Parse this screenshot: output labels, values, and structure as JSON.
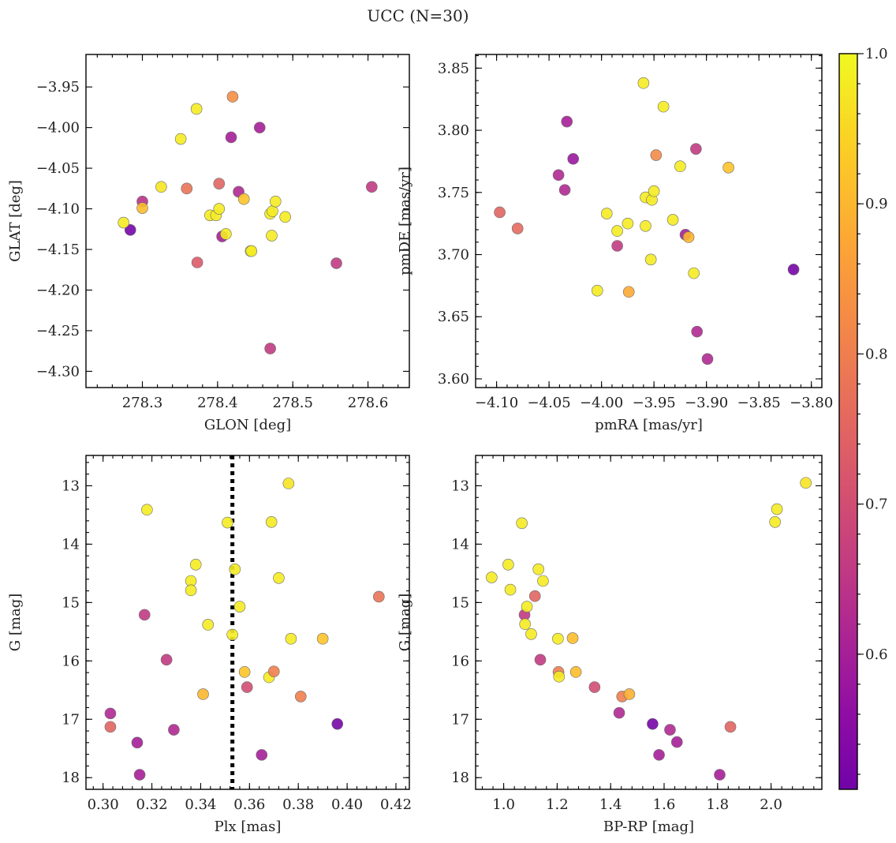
{
  "figure_title": "UCC (N=30)",
  "chart_data": [
    {
      "type": "scatter",
      "xlabel": "GLON [deg]",
      "ylabel": "GLAT [deg]",
      "xlim": [
        278.225,
        278.655
      ],
      "ylim": [
        -4.32,
        -3.91
      ],
      "yinvert": false,
      "xticks": [
        278.3,
        278.4,
        278.5,
        278.6
      ],
      "xtick_labels": [
        "278.3",
        "278.4",
        "278.5",
        "278.6"
      ],
      "yticks": [
        -3.95,
        -4.0,
        -4.05,
        -4.1,
        -4.15,
        -4.2,
        -4.25,
        -4.3
      ],
      "ytick_labels": [
        "−3.95",
        "−4.00",
        "−4.05",
        "−4.10",
        "−4.15",
        "−4.20",
        "−4.25",
        "−4.30"
      ],
      "points": [
        {
          "x": 278.284,
          "y": -4.126,
          "c": 0.52
        },
        {
          "x": 278.275,
          "y": -4.117,
          "c": 0.98
        },
        {
          "x": 278.3,
          "y": -4.091,
          "c": 0.64
        },
        {
          "x": 278.3,
          "y": -4.099,
          "c": 0.91
        },
        {
          "x": 278.325,
          "y": -4.073,
          "c": 0.97
        },
        {
          "x": 278.351,
          "y": -4.014,
          "c": 0.98
        },
        {
          "x": 278.359,
          "y": -4.075,
          "c": 0.78
        },
        {
          "x": 278.372,
          "y": -3.977,
          "c": 0.98
        },
        {
          "x": 278.373,
          "y": -4.166,
          "c": 0.73
        },
        {
          "x": 278.39,
          "y": -4.108,
          "c": 0.98
        },
        {
          "x": 278.398,
          "y": -4.108,
          "c": 0.98
        },
        {
          "x": 278.402,
          "y": -4.1,
          "c": 0.98
        },
        {
          "x": 278.402,
          "y": -4.069,
          "c": 0.75
        },
        {
          "x": 278.406,
          "y": -4.134,
          "c": 0.6
        },
        {
          "x": 278.411,
          "y": -4.131,
          "c": 0.98
        },
        {
          "x": 278.418,
          "y": -4.012,
          "c": 0.6
        },
        {
          "x": 278.42,
          "y": -3.962,
          "c": 0.83
        },
        {
          "x": 278.428,
          "y": -4.079,
          "c": 0.62
        },
        {
          "x": 278.435,
          "y": -4.088,
          "c": 0.92
        },
        {
          "x": 278.444,
          "y": -4.152,
          "c": 0.98
        },
        {
          "x": 278.445,
          "y": -4.152,
          "c": 0.98
        },
        {
          "x": 278.456,
          "y": -4.0,
          "c": 0.6
        },
        {
          "x": 278.47,
          "y": -4.106,
          "c": 0.98
        },
        {
          "x": 278.473,
          "y": -4.103,
          "c": 0.98
        },
        {
          "x": 278.472,
          "y": -4.133,
          "c": 0.98
        },
        {
          "x": 278.47,
          "y": -4.272,
          "c": 0.66
        },
        {
          "x": 278.477,
          "y": -4.091,
          "c": 0.98
        },
        {
          "x": 278.49,
          "y": -4.11,
          "c": 0.98
        },
        {
          "x": 278.558,
          "y": -4.167,
          "c": 0.66
        },
        {
          "x": 278.605,
          "y": -4.073,
          "c": 0.66
        }
      ]
    },
    {
      "type": "scatter",
      "xlabel": "pmRA [mas/yr]",
      "ylabel": "pmDE [mas/yr]",
      "xlim": [
        -4.12,
        -3.79
      ],
      "ylim": [
        3.593,
        3.861
      ],
      "yinvert": false,
      "xticks": [
        -4.1,
        -4.05,
        -4.0,
        -3.95,
        -3.9,
        -3.85,
        -3.8
      ],
      "xtick_labels": [
        "−4.10",
        "−4.05",
        "−4.00",
        "−3.95",
        "−3.90",
        "−3.85",
        "−3.80"
      ],
      "yticks": [
        3.6,
        3.65,
        3.7,
        3.75,
        3.8,
        3.85
      ],
      "ytick_labels": [
        "3.60",
        "3.65",
        "3.70",
        "3.75",
        "3.80",
        "3.85"
      ],
      "points": [
        {
          "x": -4.097,
          "y": 3.734,
          "c": 0.75
        },
        {
          "x": -4.08,
          "y": 3.721,
          "c": 0.76
        },
        {
          "x": -4.041,
          "y": 3.764,
          "c": 0.62
        },
        {
          "x": -4.033,
          "y": 3.807,
          "c": 0.6
        },
        {
          "x": -4.035,
          "y": 3.752,
          "c": 0.62
        },
        {
          "x": -4.027,
          "y": 3.777,
          "c": 0.58
        },
        {
          "x": -4.004,
          "y": 3.671,
          "c": 0.98
        },
        {
          "x": -3.995,
          "y": 3.733,
          "c": 0.98
        },
        {
          "x": -3.985,
          "y": 3.719,
          "c": 0.98
        },
        {
          "x": -3.985,
          "y": 3.707,
          "c": 0.66
        },
        {
          "x": -3.975,
          "y": 3.725,
          "c": 0.98
        },
        {
          "x": -3.974,
          "y": 3.67,
          "c": 0.88
        },
        {
          "x": -3.96,
          "y": 3.838,
          "c": 0.98
        },
        {
          "x": -3.958,
          "y": 3.723,
          "c": 0.98
        },
        {
          "x": -3.958,
          "y": 3.746,
          "c": 0.98
        },
        {
          "x": -3.953,
          "y": 3.696,
          "c": 0.98
        },
        {
          "x": -3.952,
          "y": 3.744,
          "c": 0.98
        },
        {
          "x": -3.95,
          "y": 3.751,
          "c": 0.98
        },
        {
          "x": -3.948,
          "y": 3.78,
          "c": 0.82
        },
        {
          "x": -3.941,
          "y": 3.819,
          "c": 0.98
        },
        {
          "x": -3.932,
          "y": 3.728,
          "c": 0.98
        },
        {
          "x": -3.925,
          "y": 3.771,
          "c": 0.98
        },
        {
          "x": -3.92,
          "y": 3.716,
          "c": 0.6
        },
        {
          "x": -3.917,
          "y": 3.714,
          "c": 0.9
        },
        {
          "x": -3.912,
          "y": 3.685,
          "c": 0.98
        },
        {
          "x": -3.91,
          "y": 3.785,
          "c": 0.66
        },
        {
          "x": -3.909,
          "y": 3.638,
          "c": 0.62
        },
        {
          "x": -3.899,
          "y": 3.616,
          "c": 0.62
        },
        {
          "x": -3.879,
          "y": 3.77,
          "c": 0.92
        },
        {
          "x": -3.817,
          "y": 3.688,
          "c": 0.52
        }
      ]
    },
    {
      "type": "scatter",
      "xlabel": "Plx [mas]",
      "ylabel": "G [mag]",
      "xlim": [
        0.293,
        0.4255
      ],
      "ylim": [
        18.2,
        12.48
      ],
      "yinvert": true,
      "xticks": [
        0.3,
        0.32,
        0.34,
        0.36,
        0.38,
        0.4,
        0.42
      ],
      "xtick_labels": [
        "0.30",
        "0.32",
        "0.34",
        "0.36",
        "0.38",
        "0.40",
        "0.42"
      ],
      "yticks": [
        13,
        14,
        15,
        16,
        17,
        18
      ],
      "ytick_labels": [
        "13",
        "14",
        "15",
        "16",
        "17",
        "18"
      ],
      "vline": {
        "x": 0.353,
        "style": "dotted"
      },
      "points": [
        {
          "x": 0.303,
          "y": 16.9,
          "c": 0.62
        },
        {
          "x": 0.303,
          "y": 17.13,
          "c": 0.75
        },
        {
          "x": 0.314,
          "y": 17.4,
          "c": 0.6
        },
        {
          "x": 0.315,
          "y": 17.95,
          "c": 0.6
        },
        {
          "x": 0.317,
          "y": 15.21,
          "c": 0.66
        },
        {
          "x": 0.318,
          "y": 13.41,
          "c": 0.98
        },
        {
          "x": 0.326,
          "y": 15.98,
          "c": 0.66
        },
        {
          "x": 0.329,
          "y": 17.18,
          "c": 0.62
        },
        {
          "x": 0.336,
          "y": 14.63,
          "c": 0.98
        },
        {
          "x": 0.336,
          "y": 14.79,
          "c": 0.98
        },
        {
          "x": 0.338,
          "y": 14.35,
          "c": 0.98
        },
        {
          "x": 0.341,
          "y": 16.57,
          "c": 0.9
        },
        {
          "x": 0.343,
          "y": 15.38,
          "c": 0.98
        },
        {
          "x": 0.351,
          "y": 13.63,
          "c": 0.98
        },
        {
          "x": 0.353,
          "y": 15.55,
          "c": 0.98
        },
        {
          "x": 0.354,
          "y": 14.43,
          "c": 0.98
        },
        {
          "x": 0.356,
          "y": 15.07,
          "c": 0.98
        },
        {
          "x": 0.358,
          "y": 16.19,
          "c": 0.92
        },
        {
          "x": 0.359,
          "y": 16.45,
          "c": 0.7
        },
        {
          "x": 0.365,
          "y": 17.61,
          "c": 0.6
        },
        {
          "x": 0.368,
          "y": 16.28,
          "c": 0.98
        },
        {
          "x": 0.369,
          "y": 13.62,
          "c": 0.98
        },
        {
          "x": 0.37,
          "y": 16.18,
          "c": 0.8
        },
        {
          "x": 0.372,
          "y": 14.58,
          "c": 0.98
        },
        {
          "x": 0.376,
          "y": 12.96,
          "c": 0.97
        },
        {
          "x": 0.377,
          "y": 15.62,
          "c": 0.98
        },
        {
          "x": 0.381,
          "y": 16.61,
          "c": 0.8
        },
        {
          "x": 0.39,
          "y": 15.62,
          "c": 0.92
        },
        {
          "x": 0.396,
          "y": 17.08,
          "c": 0.52
        },
        {
          "x": 0.413,
          "y": 14.9,
          "c": 0.78
        }
      ]
    },
    {
      "type": "scatter",
      "xlabel": "BP-RP [mag]",
      "ylabel": "G [mag]",
      "xlim": [
        0.895,
        2.19
      ],
      "ylim": [
        18.2,
        12.48
      ],
      "yinvert": true,
      "xticks": [
        1.0,
        1.2,
        1.4,
        1.6,
        1.8,
        2.0
      ],
      "xtick_labels": [
        "1.0",
        "1.2",
        "1.4",
        "1.6",
        "1.8",
        "2.0"
      ],
      "yticks": [
        13,
        14,
        15,
        16,
        17,
        18
      ],
      "ytick_labels": [
        "13",
        "14",
        "15",
        "16",
        "17",
        "18"
      ],
      "points": [
        {
          "x": 0.955,
          "y": 14.57,
          "c": 0.98
        },
        {
          "x": 1.017,
          "y": 14.35,
          "c": 0.98
        },
        {
          "x": 1.025,
          "y": 14.78,
          "c": 0.98
        },
        {
          "x": 1.068,
          "y": 13.64,
          "c": 0.98
        },
        {
          "x": 1.078,
          "y": 15.21,
          "c": 0.66
        },
        {
          "x": 1.08,
          "y": 15.37,
          "c": 0.98
        },
        {
          "x": 1.087,
          "y": 15.07,
          "c": 0.98
        },
        {
          "x": 1.103,
          "y": 15.54,
          "c": 0.98
        },
        {
          "x": 1.117,
          "y": 14.89,
          "c": 0.75
        },
        {
          "x": 1.13,
          "y": 14.43,
          "c": 0.98
        },
        {
          "x": 1.137,
          "y": 15.98,
          "c": 0.66
        },
        {
          "x": 1.147,
          "y": 14.63,
          "c": 0.98
        },
        {
          "x": 1.203,
          "y": 15.62,
          "c": 0.98
        },
        {
          "x": 1.205,
          "y": 16.19,
          "c": 0.8
        },
        {
          "x": 1.207,
          "y": 16.27,
          "c": 0.98
        },
        {
          "x": 1.258,
          "y": 15.61,
          "c": 0.91
        },
        {
          "x": 1.27,
          "y": 16.19,
          "c": 0.91
        },
        {
          "x": 1.34,
          "y": 16.45,
          "c": 0.7
        },
        {
          "x": 1.432,
          "y": 16.89,
          "c": 0.62
        },
        {
          "x": 1.443,
          "y": 16.61,
          "c": 0.8
        },
        {
          "x": 1.47,
          "y": 16.57,
          "c": 0.89
        },
        {
          "x": 1.557,
          "y": 17.08,
          "c": 0.52
        },
        {
          "x": 1.581,
          "y": 17.61,
          "c": 0.6
        },
        {
          "x": 1.622,
          "y": 17.18,
          "c": 0.62
        },
        {
          "x": 1.648,
          "y": 17.39,
          "c": 0.6
        },
        {
          "x": 1.808,
          "y": 17.95,
          "c": 0.6
        },
        {
          "x": 1.848,
          "y": 17.13,
          "c": 0.75
        },
        {
          "x": 2.015,
          "y": 13.62,
          "c": 0.98
        },
        {
          "x": 2.022,
          "y": 13.4,
          "c": 0.98
        },
        {
          "x": 2.13,
          "y": 12.95,
          "c": 0.97
        }
      ]
    }
  ],
  "colorbar": {
    "colormap": "plasma",
    "range": [
      0.51,
      1.0
    ],
    "ticks": [
      0.6,
      0.7,
      0.8,
      0.9,
      1.0
    ],
    "tick_labels": [
      "0.6",
      "0.7",
      "0.8",
      "0.9",
      "1.0"
    ]
  }
}
